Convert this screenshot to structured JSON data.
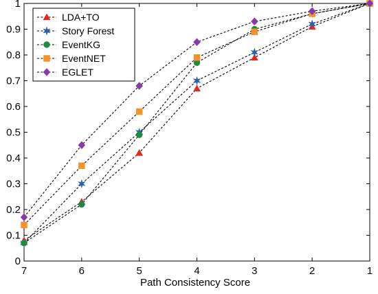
{
  "chart_data": {
    "type": "line",
    "title": "",
    "xlabel": "Path Consistency Score",
    "ylabel": "",
    "x": [
      7,
      6,
      5,
      4,
      3,
      2,
      1
    ],
    "xlim": [
      7,
      1
    ],
    "ylim": [
      0,
      1
    ],
    "x_ticks": [
      "7",
      "6",
      "5",
      "4",
      "3",
      "2",
      "1"
    ],
    "y_ticks": [
      "0",
      "0.1",
      "0.2",
      "0.3",
      "0.4",
      "0.5",
      "0.6",
      "0.7",
      "0.8",
      "0.9",
      "1"
    ],
    "grid": false,
    "legend_position": "top-left",
    "line_style": "dashed",
    "series": [
      {
        "name": "LDA+TO",
        "marker": "triangle",
        "color": "#e8261e",
        "values": [
          0.08,
          0.23,
          0.42,
          0.67,
          0.79,
          0.91,
          1.0
        ]
      },
      {
        "name": "Story Forest",
        "marker": "star",
        "color": "#2f5fae",
        "values": [
          0.07,
          0.3,
          0.5,
          0.7,
          0.81,
          0.92,
          1.0
        ]
      },
      {
        "name": "EventKG",
        "marker": "circle",
        "color": "#1f8a3f",
        "values": [
          0.07,
          0.22,
          0.49,
          0.77,
          0.9,
          0.96,
          1.0
        ]
      },
      {
        "name": "EventNET",
        "marker": "square",
        "color": "#f5922a",
        "values": [
          0.14,
          0.37,
          0.58,
          0.79,
          0.89,
          0.96,
          1.0
        ]
      },
      {
        "name": "EGLET",
        "marker": "diamond",
        "color": "#8a3aa8",
        "values": [
          0.17,
          0.45,
          0.68,
          0.85,
          0.93,
          0.97,
          1.0
        ]
      }
    ]
  }
}
